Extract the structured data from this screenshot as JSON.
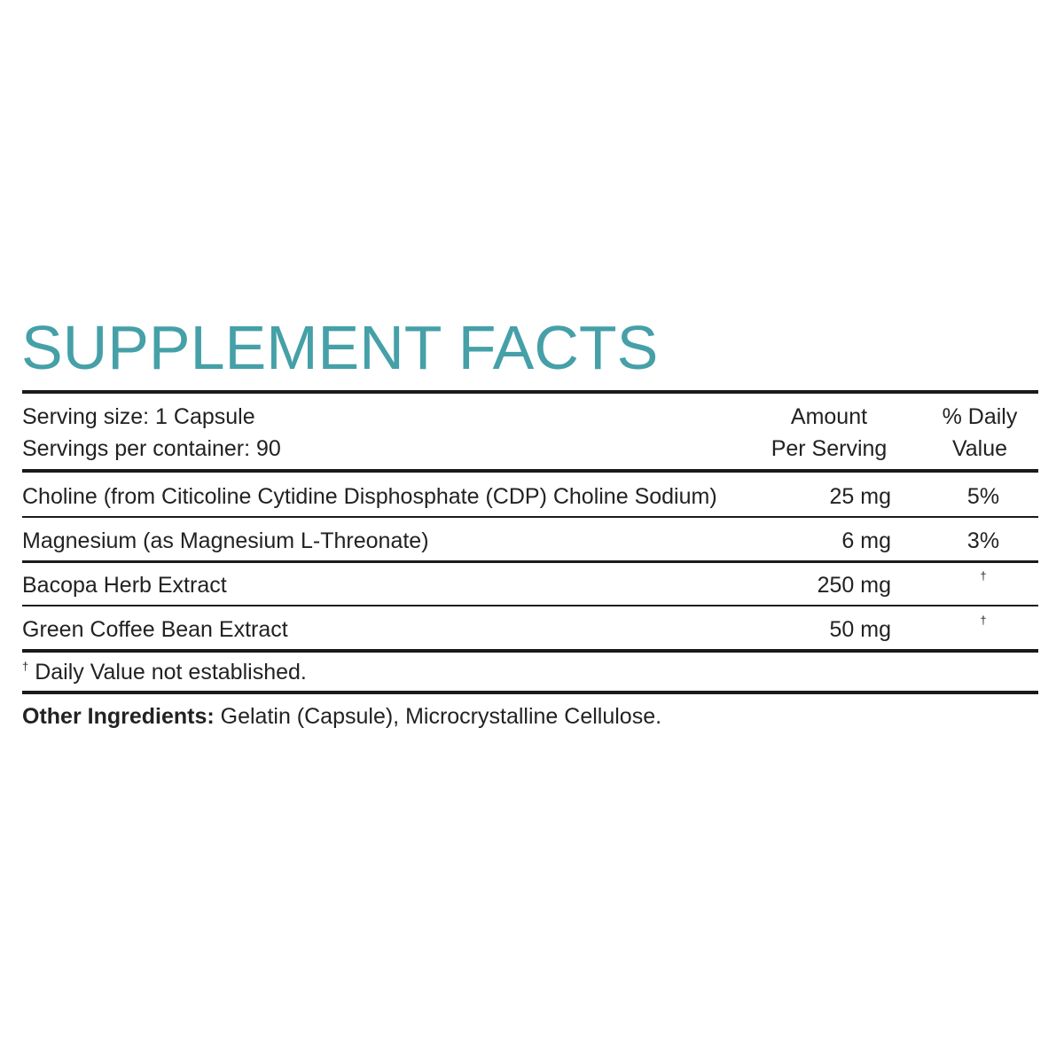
{
  "title": "SUPPLEMENT FACTS",
  "serving": {
    "size": "Serving size: 1 Capsule",
    "per_container": "Servings per container: 90"
  },
  "header": {
    "amount": [
      "Amount",
      "Per Serving"
    ],
    "daily_value": [
      "% Daily",
      "Value"
    ]
  },
  "table": {
    "rows": [
      [
        "Choline (from Citicoline Cytidine Disphosphate (CDP) Choline Sodium)",
        "25 mg",
        "5%"
      ],
      [
        "Magnesium (as Magnesium L-Threonate)",
        "6 mg",
        "3%"
      ],
      [
        "Bacopa Herb Extract",
        "250 mg",
        "†"
      ],
      [
        "Green Coffee Bean Extract",
        "50 mg",
        "†"
      ]
    ]
  },
  "footnote": {
    "mark": "†",
    "text": "Daily Value not established."
  },
  "other_ingredients": {
    "label": "Other Ingredients:",
    "text": "Gelatin (Capsule), Microcrystalline Cellulose."
  }
}
